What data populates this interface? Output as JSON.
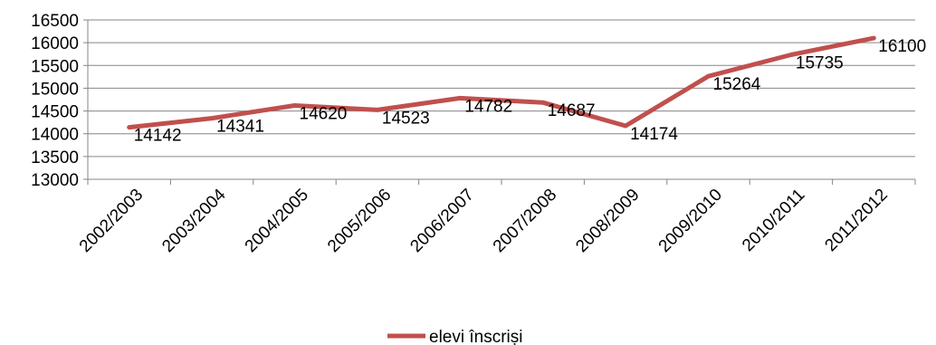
{
  "chart_data": {
    "type": "line",
    "title": "",
    "xlabel": "",
    "ylabel": "",
    "categories": [
      "2002/2003",
      "2003/2004",
      "2004/2005",
      "2005/2006",
      "2006/2007",
      "2007/2008",
      "2008/2009",
      "2009/2010",
      "2010/2011",
      "2011/2012"
    ],
    "series": [
      {
        "name": "elevi înscriși",
        "values": [
          14142,
          14341,
          14620,
          14523,
          14782,
          14687,
          14174,
          15264,
          15735,
          16100
        ],
        "color": "#c0504d"
      }
    ],
    "yticks": [
      "13000",
      "13500",
      "14000",
      "14500",
      "15000",
      "15500",
      "16000",
      "16500"
    ],
    "ylim": [
      13000,
      16500
    ],
    "grid": true,
    "legend_position": "bottom",
    "data_labels": true
  }
}
